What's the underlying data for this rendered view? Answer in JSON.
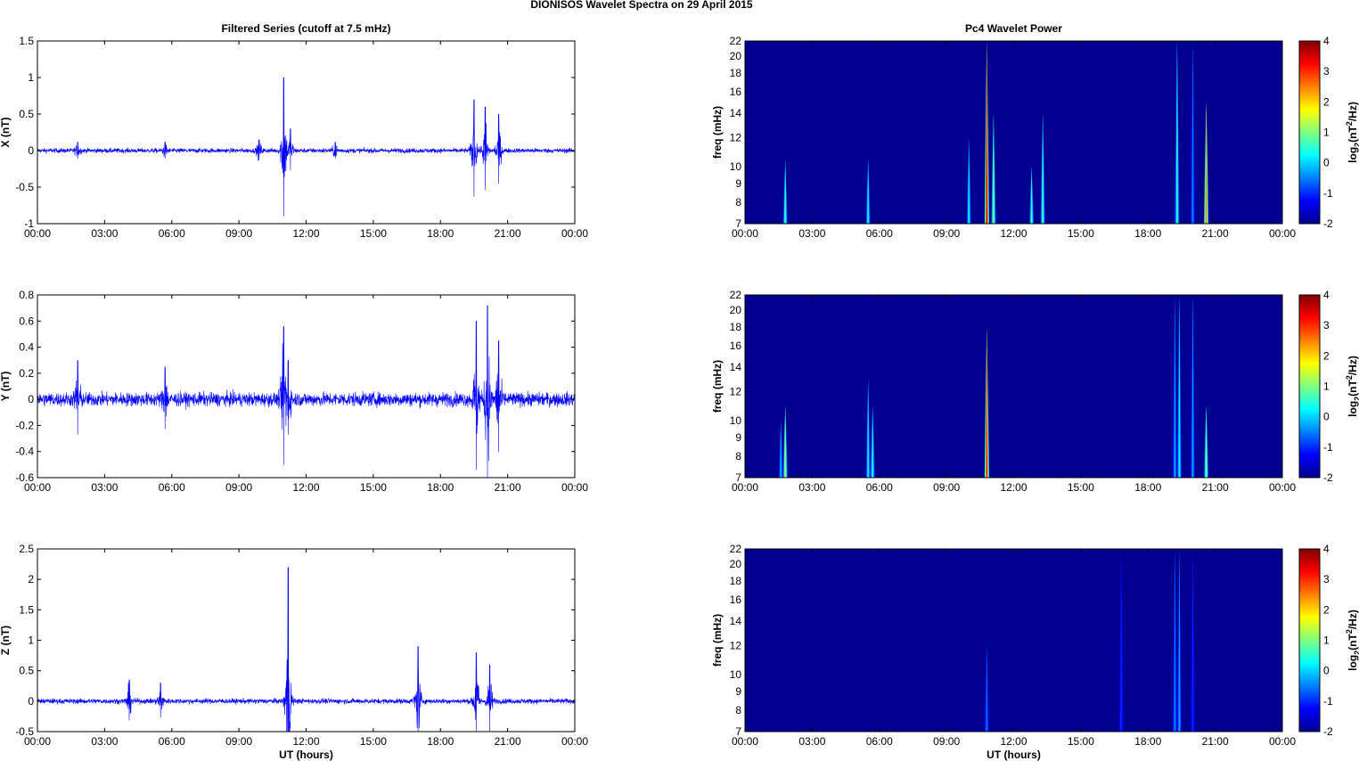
{
  "figure_title": "DIONISOS Wavelet Spectra on 29 April     2015",
  "colors": {
    "signal": "#0000ff",
    "spectrum_background": "#00008f",
    "axes": "#000000"
  },
  "chart_data": [
    {
      "type": "line",
      "panel": "X",
      "title": "Filtered Series (cutoff at 7.5 mHz)",
      "ylabel": "X (nT)",
      "xlabel": "",
      "xlim": [
        0,
        24
      ],
      "ylim": [
        -1,
        1.5
      ],
      "xticks": [
        "00:00",
        "03:00",
        "06:00",
        "09:00",
        "12:00",
        "15:00",
        "18:00",
        "21:00",
        "00:00"
      ],
      "yticks": [
        "-1",
        "-0.5",
        "0",
        "0.5",
        "1",
        "1.5"
      ],
      "ytick_values": [
        -1,
        -0.5,
        0,
        0.5,
        1,
        1.5
      ],
      "noise_level": 0.03,
      "events": [
        {
          "t": 1.8,
          "amp": 0.12
        },
        {
          "t": 5.7,
          "amp": 0.12
        },
        {
          "t": 9.9,
          "amp": 0.15
        },
        {
          "t": 11.0,
          "amp": 1.0
        },
        {
          "t": 11.3,
          "amp": 0.3
        },
        {
          "t": 13.3,
          "amp": 0.12
        },
        {
          "t": 19.5,
          "amp": 0.7
        },
        {
          "t": 20.0,
          "amp": 0.6
        },
        {
          "t": 20.6,
          "amp": 0.5
        }
      ]
    },
    {
      "type": "line",
      "panel": "Y",
      "title": "",
      "ylabel": "Y (nT)",
      "xlabel": "",
      "xlim": [
        0,
        24
      ],
      "ylim": [
        -0.6,
        0.8
      ],
      "xticks": [
        "00:00",
        "03:00",
        "06:00",
        "09:00",
        "12:00",
        "15:00",
        "18:00",
        "21:00",
        "00:00"
      ],
      "yticks": [
        "-0.6",
        "-0.4",
        "-0.2",
        "0",
        "0.2",
        "0.4",
        "0.6",
        "0.8"
      ],
      "ytick_values": [
        -0.6,
        -0.4,
        -0.2,
        0,
        0.2,
        0.4,
        0.6,
        0.8
      ],
      "noise_level": 0.05,
      "events": [
        {
          "t": 1.8,
          "amp": 0.3
        },
        {
          "t": 5.7,
          "amp": 0.25
        },
        {
          "t": 11.0,
          "amp": 0.56
        },
        {
          "t": 11.2,
          "amp": 0.3
        },
        {
          "t": 19.6,
          "amp": 0.6
        },
        {
          "t": 20.1,
          "amp": 0.72
        },
        {
          "t": 20.6,
          "amp": 0.45
        }
      ]
    },
    {
      "type": "line",
      "panel": "Z",
      "title": "",
      "ylabel": "Z (nT)",
      "xlabel": "UT (hours)",
      "xlim": [
        0,
        24
      ],
      "ylim": [
        -0.5,
        2.5
      ],
      "xticks": [
        "00:00",
        "03:00",
        "06:00",
        "09:00",
        "12:00",
        "15:00",
        "18:00",
        "21:00",
        "00:00"
      ],
      "yticks": [
        "-0.5",
        "0",
        "0.5",
        "1",
        "1.5",
        "2",
        "2.5"
      ],
      "ytick_values": [
        -0.5,
        0,
        0.5,
        1,
        1.5,
        2,
        2.5
      ],
      "noise_level": 0.04,
      "events": [
        {
          "t": 4.1,
          "amp": 0.35
        },
        {
          "t": 5.5,
          "amp": 0.3
        },
        {
          "t": 11.2,
          "amp": 2.2
        },
        {
          "t": 17.0,
          "amp": 0.9
        },
        {
          "t": 19.6,
          "amp": 0.8
        },
        {
          "t": 20.2,
          "amp": 0.6
        }
      ]
    },
    {
      "type": "heatmap",
      "panel": "X",
      "title": "Pc4 Wavelet Power",
      "ylabel": "freq (mHz)",
      "xlabel": "",
      "xlim": [
        0,
        24
      ],
      "ylim": [
        7,
        22
      ],
      "yscale": "log",
      "xticks": [
        "00:00",
        "03:00",
        "06:00",
        "09:00",
        "12:00",
        "15:00",
        "18:00",
        "21:00",
        "00:00"
      ],
      "yticks": [
        "7",
        "8",
        "9",
        "10",
        "12",
        "14",
        "16",
        "18",
        "20",
        "22"
      ],
      "ytick_values": [
        7,
        8,
        9,
        10,
        12,
        14,
        16,
        18,
        20,
        22
      ],
      "colorbar": {
        "label_main": "log",
        "label_sub": "2",
        "label_rest": "(nT",
        "label_sup": "2",
        "label_end": "/Hz)",
        "range": [
          -2,
          4
        ],
        "ticks": [
          "-2",
          "-1",
          "0",
          "1",
          "2",
          "3",
          "4"
        ]
      },
      "events": [
        {
          "t": 1.8,
          "level": 0.6,
          "ftop": 10.5
        },
        {
          "t": 5.5,
          "level": 0.3,
          "ftop": 10.5
        },
        {
          "t": 10.0,
          "level": 0.2,
          "ftop": 12
        },
        {
          "t": 10.8,
          "level": 3.5,
          "ftop": 22
        },
        {
          "t": 11.1,
          "level": 1.0,
          "ftop": 14
        },
        {
          "t": 12.8,
          "level": 0.6,
          "ftop": 10
        },
        {
          "t": 13.3,
          "level": 0.6,
          "ftop": 14
        },
        {
          "t": 19.3,
          "level": 0.5,
          "ftop": 22
        },
        {
          "t": 20.0,
          "level": -0.5,
          "ftop": 22
        },
        {
          "t": 20.6,
          "level": 2.5,
          "ftop": 15
        }
      ]
    },
    {
      "type": "heatmap",
      "panel": "Y",
      "title": "",
      "ylabel": "freq (mHz)",
      "xlabel": "",
      "xlim": [
        0,
        24
      ],
      "ylim": [
        7,
        22
      ],
      "yscale": "log",
      "xticks": [
        "00:00",
        "03:00",
        "06:00",
        "09:00",
        "12:00",
        "15:00",
        "18:00",
        "21:00",
        "00:00"
      ],
      "yticks": [
        "7",
        "8",
        "9",
        "10",
        "12",
        "14",
        "16",
        "18",
        "20",
        "22"
      ],
      "ytick_values": [
        7,
        8,
        9,
        10,
        12,
        14,
        16,
        18,
        20,
        22
      ],
      "colorbar": {
        "label_main": "log",
        "label_sub": "2",
        "label_rest": "(nT",
        "label_sup": "2",
        "label_end": "/Hz)",
        "range": [
          -2,
          4
        ],
        "ticks": [
          "-2",
          "-1",
          "0",
          "1",
          "2",
          "3",
          "4"
        ]
      },
      "events": [
        {
          "t": 1.6,
          "level": -0.2,
          "ftop": 10
        },
        {
          "t": 1.8,
          "level": 1.2,
          "ftop": 11
        },
        {
          "t": 5.5,
          "level": 0.2,
          "ftop": 13
        },
        {
          "t": 5.7,
          "level": 0.4,
          "ftop": 11
        },
        {
          "t": 10.8,
          "level": 3.2,
          "ftop": 18
        },
        {
          "t": 19.2,
          "level": -0.3,
          "ftop": 22
        },
        {
          "t": 19.4,
          "level": 0.2,
          "ftop": 22
        },
        {
          "t": 20.0,
          "level": -0.3,
          "ftop": 22
        },
        {
          "t": 20.6,
          "level": 1.0,
          "ftop": 11
        }
      ]
    },
    {
      "type": "heatmap",
      "panel": "Z",
      "title": "",
      "ylabel": "freq (mHz)",
      "xlabel": "UT (hours)",
      "xlim": [
        0,
        24
      ],
      "ylim": [
        7,
        22
      ],
      "yscale": "log",
      "xticks": [
        "00:00",
        "03:00",
        "06:00",
        "09:00",
        "12:00",
        "15:00",
        "18:00",
        "21:00",
        "00:00"
      ],
      "yticks": [
        "7",
        "8",
        "9",
        "10",
        "12",
        "14",
        "16",
        "18",
        "20",
        "22"
      ],
      "ytick_values": [
        7,
        8,
        9,
        10,
        12,
        14,
        16,
        18,
        20,
        22
      ],
      "colorbar": {
        "label_main": "log",
        "label_sub": "2",
        "label_rest": "(nT",
        "label_sup": "2",
        "label_end": "/Hz)",
        "range": [
          -2,
          4
        ],
        "ticks": [
          "-2",
          "-1",
          "0",
          "1",
          "2",
          "3",
          "4"
        ]
      },
      "events": [
        {
          "t": 10.8,
          "level": -0.6,
          "ftop": 12
        },
        {
          "t": 16.8,
          "level": -1.0,
          "ftop": 22
        },
        {
          "t": 19.2,
          "level": -0.5,
          "ftop": 22
        },
        {
          "t": 19.4,
          "level": -0.3,
          "ftop": 22
        },
        {
          "t": 20.0,
          "level": -1.0,
          "ftop": 22
        }
      ]
    }
  ]
}
